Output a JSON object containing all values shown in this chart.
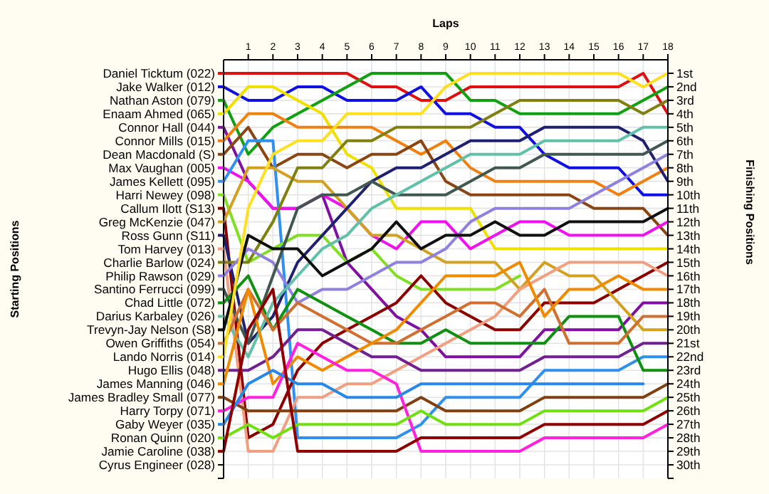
{
  "chart_data": {
    "type": "line",
    "xlabel": "Laps",
    "ylabel": "Finishing Positions",
    "annotations": [
      "Starting Positions",
      "Cyrus Engineer (028)"
    ],
    "legend": "left",
    "grid": true,
    "marker": "none",
    "line_style": "solid",
    "x": [
      0,
      1,
      2,
      3,
      4,
      5,
      6,
      7,
      8,
      9,
      10,
      11,
      12,
      13,
      14,
      15,
      16,
      17,
      18
    ],
    "xlim": [
      0,
      18
    ],
    "xticks": [
      1,
      2,
      3,
      4,
      5,
      6,
      7,
      8,
      9,
      10,
      11,
      12,
      13,
      14,
      15,
      16,
      17,
      18
    ],
    "ylim": [
      31,
      0
    ],
    "yticks": [
      {
        "value": 1,
        "label": "1st"
      },
      {
        "value": 2,
        "label": "2nd"
      },
      {
        "value": 3,
        "label": "3rd"
      },
      {
        "value": 4,
        "label": "4th"
      },
      {
        "value": 5,
        "label": "5th"
      },
      {
        "value": 6,
        "label": "6th"
      },
      {
        "value": 7,
        "label": "7th"
      },
      {
        "value": 8,
        "label": "8th"
      },
      {
        "value": 9,
        "label": "9th"
      },
      {
        "value": 10,
        "label": "10th"
      },
      {
        "value": 11,
        "label": "11th"
      },
      {
        "value": 12,
        "label": "12th"
      },
      {
        "value": 13,
        "label": "13th"
      },
      {
        "value": 14,
        "label": "14th"
      },
      {
        "value": 15,
        "label": "15th"
      },
      {
        "value": 16,
        "label": "16th"
      },
      {
        "value": 17,
        "label": "17th"
      },
      {
        "value": 18,
        "label": "18th"
      },
      {
        "value": 19,
        "label": "19th"
      },
      {
        "value": 20,
        "label": "20th"
      },
      {
        "value": 21,
        "label": "21st"
      },
      {
        "value": 22,
        "label": "22nd"
      },
      {
        "value": 23,
        "label": "23rd"
      },
      {
        "value": 24,
        "label": "24th"
      },
      {
        "value": 25,
        "label": "25th"
      },
      {
        "value": 26,
        "label": "26th"
      },
      {
        "value": 27,
        "label": "27th"
      },
      {
        "value": 28,
        "label": "28th"
      },
      {
        "value": 29,
        "label": "29th"
      },
      {
        "value": 30,
        "label": "30th"
      }
    ],
    "series": [
      {
        "name": "Daniel Ticktum (022)",
        "color": "#e01010",
        "values": [
          1,
          1,
          1,
          1,
          1,
          1,
          2,
          2,
          3,
          3,
          2,
          2,
          2,
          2,
          2,
          2,
          2,
          1,
          4
        ]
      },
      {
        "name": "Jake Walker (012)",
        "color": "#1010e0",
        "values": [
          2,
          3,
          3,
          2,
          2,
          3,
          3,
          3,
          2,
          4,
          4,
          5,
          5,
          7,
          8,
          8,
          8,
          10,
          10
        ]
      },
      {
        "name": "Nathan Aston (079)",
        "color": "#10a010",
        "values": [
          3,
          7,
          5,
          4,
          3,
          2,
          1,
          1,
          1,
          1,
          3,
          3,
          4,
          4,
          4,
          4,
          4,
          3,
          2
        ]
      },
      {
        "name": "Enaam Ahmed (065)",
        "color": "#f0e000",
        "values": [
          4,
          2,
          2,
          3,
          4,
          7,
          8,
          11,
          11,
          11,
          11,
          14,
          14,
          14,
          14,
          14,
          14,
          14,
          14
        ]
      },
      {
        "name": "Connor Hall (044)",
        "color": "#8010a0",
        "values": [
          5,
          9,
          11,
          11,
          10,
          15,
          17,
          19,
          20,
          22,
          22,
          22,
          22,
          20,
          20,
          20,
          20,
          18,
          18
        ]
      },
      {
        "name": "Connor Mills (015)",
        "color": "#f08010",
        "values": [
          6,
          4,
          4,
          5,
          5,
          5,
          5,
          6,
          7,
          6,
          8,
          9,
          9,
          9,
          9,
          9,
          10,
          9,
          8
        ]
      },
      {
        "name": "Dean Macdonald (S)",
        "color": "#8b4513",
        "values": [
          7,
          5,
          8,
          7,
          7,
          8,
          7,
          7,
          6,
          9,
          10,
          10,
          10,
          10,
          10,
          11,
          11,
          11,
          13
        ]
      },
      {
        "name": "Max Vaughan (005)",
        "color": "#f010f0",
        "values": [
          8,
          9,
          11,
          11,
          10,
          11,
          13,
          14,
          12,
          12,
          14,
          13,
          12,
          12,
          13,
          13,
          13,
          13,
          12
        ]
      },
      {
        "name": "James Kellett (095)",
        "color": "#3090f0",
        "values": [
          9,
          6,
          6,
          28,
          28,
          28,
          28,
          28,
          27,
          25,
          25,
          25,
          25,
          23,
          23,
          23,
          23,
          22,
          22
        ]
      },
      {
        "name": "Harri Newey (098)",
        "color": "#80e020",
        "values": [
          10,
          15,
          14,
          13,
          13,
          15,
          14,
          16,
          17,
          17,
          17,
          17,
          16,
          null,
          null,
          null,
          null,
          null,
          null
        ]
      },
      {
        "name": "Callum Ilott (S13)",
        "color": "#8b0000",
        "values": [
          11,
          28,
          27,
          23,
          21,
          20,
          19,
          18,
          16,
          18,
          19,
          20,
          20,
          18,
          18,
          18,
          17,
          16,
          15
        ]
      },
      {
        "name": "Greg McKenzie (047)",
        "color": "#d4a020",
        "values": [
          12,
          8,
          8,
          9,
          9,
          11,
          13,
          13,
          14,
          15,
          15,
          15,
          17,
          15,
          16,
          16,
          18,
          20,
          20
        ]
      },
      {
        "name": "Ross Gunn (S11)",
        "color": "#202070",
        "values": [
          13,
          21,
          19,
          15,
          13,
          11,
          9,
          8,
          8,
          7,
          6,
          6,
          6,
          5,
          5,
          5,
          5,
          6,
          9
        ]
      },
      {
        "name": "Tom Harvey (013)",
        "color": "#f0a080",
        "values": [
          14,
          29,
          29,
          25,
          25,
          24,
          24,
          23,
          22,
          21,
          20,
          19,
          17,
          16,
          15,
          15,
          15,
          15,
          16
        ]
      },
      {
        "name": "Charlie Barlow (024)",
        "color": "#808010",
        "values": [
          15,
          15,
          12,
          8,
          8,
          6,
          6,
          5,
          5,
          5,
          5,
          4,
          3,
          3,
          3,
          3,
          3,
          4,
          3
        ]
      },
      {
        "name": "Philip Rawson (029)",
        "color": "#9080e0",
        "values": [
          16,
          14,
          15,
          18,
          17,
          17,
          16,
          15,
          15,
          14,
          12,
          11,
          11,
          11,
          11,
          10,
          9,
          8,
          7
        ]
      },
      {
        "name": "Santino Ferrucci (099)",
        "color": "#405850",
        "values": [
          17,
          21,
          16,
          11,
          10,
          10,
          9,
          10,
          10,
          10,
          9,
          8,
          8,
          7,
          7,
          7,
          7,
          7,
          6
        ]
      },
      {
        "name": "Chad Little (072)",
        "color": "#109010",
        "values": [
          18,
          16,
          20,
          17,
          18,
          19,
          20,
          21,
          21,
          20,
          21,
          21,
          21,
          21,
          19,
          19,
          19,
          23,
          23
        ]
      },
      {
        "name": "Darius Karbaley (026)",
        "color": "#60c0a8",
        "values": [
          19,
          22,
          18,
          16,
          14,
          13,
          11,
          10,
          9,
          8,
          7,
          7,
          7,
          6,
          6,
          6,
          6,
          5,
          5
        ]
      },
      {
        "name": "Trevyn-Jay Nelson (S8)",
        "color": "#101010",
        "values": [
          20,
          13,
          14,
          14,
          16,
          15,
          14,
          12,
          14,
          13,
          13,
          12,
          13,
          13,
          12,
          12,
          12,
          12,
          11
        ]
      },
      {
        "name": "Owen Griffiths (054)",
        "color": "#d07030",
        "values": [
          21,
          17,
          20,
          18,
          19,
          20,
          21,
          21,
          20,
          19,
          18,
          18,
          19,
          17,
          21,
          21,
          21,
          19,
          19
        ]
      },
      {
        "name": "Lando Norris (014)",
        "color": "#ffe020",
        "values": [
          22,
          11,
          7,
          6,
          6,
          4,
          4,
          4,
          4,
          2,
          1,
          1,
          1,
          1,
          1,
          1,
          1,
          2,
          1
        ]
      },
      {
        "name": "Hugo Ellis (048)",
        "color": "#702090",
        "values": [
          23,
          23,
          22,
          20,
          20,
          21,
          22,
          22,
          23,
          23,
          23,
          23,
          23,
          22,
          22,
          22,
          22,
          21,
          21
        ]
      },
      {
        "name": "James Manning (046)",
        "color": "#f08a00",
        "values": [
          24,
          17,
          24,
          22,
          23,
          22,
          21,
          20,
          18,
          16,
          16,
          16,
          15,
          19,
          17,
          17,
          16,
          17,
          17
        ]
      },
      {
        "name": "James Bradley Small (077)",
        "color": "#804010",
        "values": [
          25,
          26,
          26,
          26,
          26,
          26,
          26,
          26,
          25,
          26,
          26,
          26,
          26,
          25,
          25,
          25,
          25,
          25,
          24
        ]
      },
      {
        "name": "Harry Torpy (071)",
        "color": "#ff20e0",
        "values": [
          26,
          25,
          25,
          21,
          22,
          23,
          23,
          24,
          29,
          29,
          29,
          29,
          29,
          28,
          28,
          28,
          28,
          28,
          27
        ]
      },
      {
        "name": "Gaby Weyer (035)",
        "color": "#2888e8",
        "values": [
          27,
          24,
          23,
          24,
          24,
          25,
          25,
          25,
          24,
          24,
          24,
          24,
          24,
          24,
          24,
          24,
          24,
          24,
          null
        ]
      },
      {
        "name": "Ronan Quinn (020)",
        "color": "#70e010",
        "values": [
          28,
          27,
          28,
          27,
          27,
          27,
          27,
          27,
          26,
          27,
          27,
          27,
          27,
          26,
          26,
          26,
          26,
          26,
          25
        ]
      },
      {
        "name": "Jamie Caroline (038)",
        "color": "#900000",
        "values": [
          29,
          20,
          17,
          29,
          29,
          29,
          29,
          29,
          28,
          28,
          28,
          28,
          28,
          27,
          27,
          27,
          27,
          27,
          26
        ]
      }
    ]
  }
}
